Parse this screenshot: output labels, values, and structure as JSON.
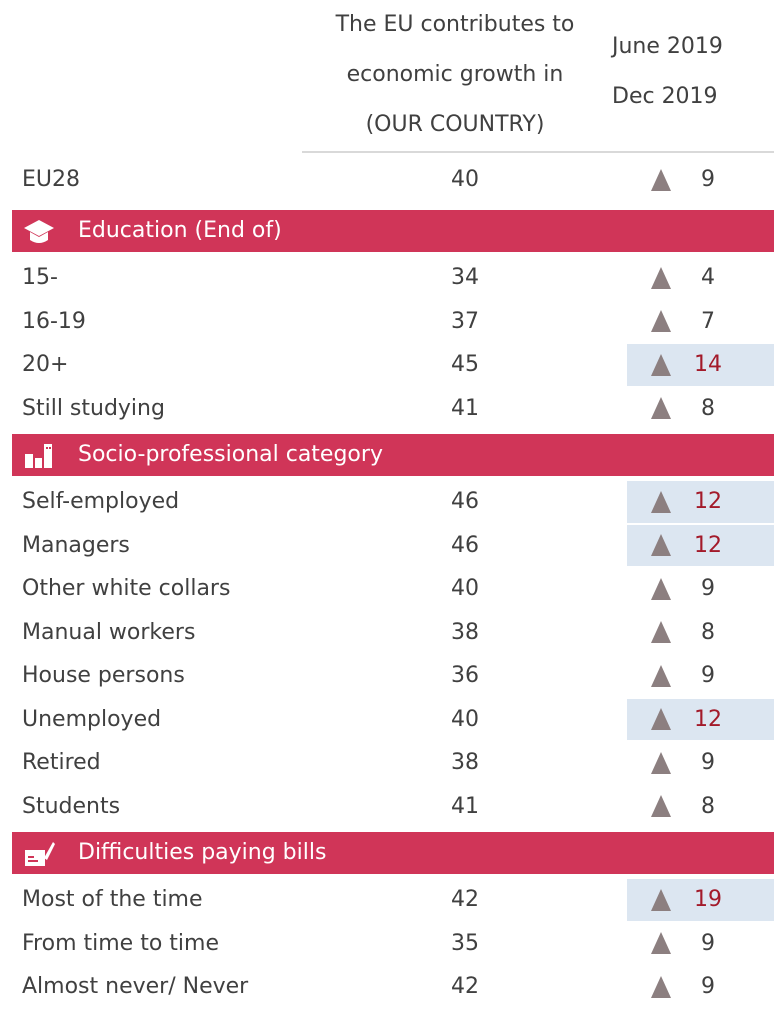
{
  "header": {
    "column1": [
      "The EU contributes to",
      "economic growth in",
      "(OUR COUNTRY)"
    ],
    "column2": [
      "June 2019",
      "Dec 2019"
    ]
  },
  "total": {
    "label": "EU28",
    "value": 40,
    "change": 9
  },
  "sections": [
    {
      "title": "Education (End of)",
      "rows": [
        {
          "label": "15-",
          "value": 34,
          "change": 4
        },
        {
          "label": "16-19",
          "value": 37,
          "change": 7
        },
        {
          "label": "20+",
          "value": 45,
          "change": 14,
          "highlight": true
        },
        {
          "label": "Still studying",
          "value": 41,
          "change": 8
        }
      ]
    },
    {
      "title": "Socio-professional category",
      "rows": [
        {
          "label": "Self-employed",
          "value": 46,
          "change": 12,
          "highlight": true
        },
        {
          "label": "Managers",
          "value": 46,
          "change": 12,
          "highlight": true
        },
        {
          "label": "Other white collars",
          "value": 40,
          "change": 9
        },
        {
          "label": "Manual workers",
          "value": 38,
          "change": 8
        },
        {
          "label": "House persons",
          "value": 36,
          "change": 9
        },
        {
          "label": "Unemployed",
          "value": 40,
          "change": 12,
          "highlight": true
        },
        {
          "label": "Retired",
          "value": 38,
          "change": 9
        },
        {
          "label": "Students",
          "value": 41,
          "change": 8
        }
      ]
    },
    {
      "title": "Difficulties paying bills",
      "rows": [
        {
          "label": "Most of the time",
          "value": 42,
          "change": 19,
          "highlight": true
        },
        {
          "label": "From time to time",
          "value": 35,
          "change": 9
        },
        {
          "label": "Almost never/ Never",
          "value": 42,
          "change": 9
        }
      ]
    }
  ]
}
